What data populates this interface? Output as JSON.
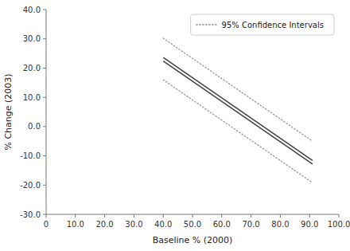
{
  "chart_data": {
    "type": "line",
    "xlabel": "Baseline % (2000)",
    "ylabel": "% Change (2003)",
    "x": [
      40,
      91
    ],
    "series": [
      {
        "color": "#444444",
        "line_style": "solid",
        "values": [
          23.6,
          -11.59
        ]
      },
      {
        "color": "#444444",
        "line_style": "solid",
        "values": [
          22.4,
          -12.79
        ]
      },
      {
        "name": "95% Confidence Intervals",
        "color": "#999999",
        "line_style": "dotted",
        "values": [
          30.2,
          -4.99
        ]
      },
      {
        "color": "#999999",
        "line_style": "dotted",
        "values": [
          16,
          -19.19
        ]
      }
    ],
    "xlim": [
      0,
      100
    ],
    "ylim": [
      -30,
      40
    ],
    "xticks": [
      0,
      {
        "value": 10,
        "label": "10.0"
      },
      {
        "value": 20,
        "label": "20.0"
      },
      {
        "value": 30,
        "label": "30.0"
      },
      {
        "value": 40,
        "label": "40.0"
      },
      {
        "value": 50,
        "label": "50.0"
      },
      {
        "value": 60,
        "label": "60.0"
      },
      {
        "value": 70,
        "label": "70.0"
      },
      {
        "value": 80,
        "label": "80.0"
      },
      {
        "value": 90,
        "label": "90.0"
      },
      {
        "value": 100,
        "label": "100.0"
      }
    ],
    "yticks": [
      {
        "value": -30,
        "label": "-30.0"
      },
      {
        "value": -20,
        "label": "-20.0"
      },
      {
        "value": -10,
        "label": "-10.0"
      },
      {
        "value": 0,
        "label": "0.0"
      },
      {
        "value": 10,
        "label": "10.0"
      },
      {
        "value": 20,
        "label": "20.0"
      },
      {
        "value": 30,
        "label": "30.0"
      },
      {
        "value": 40,
        "label": "40.0"
      }
    ],
    "legend": "upper right"
  }
}
